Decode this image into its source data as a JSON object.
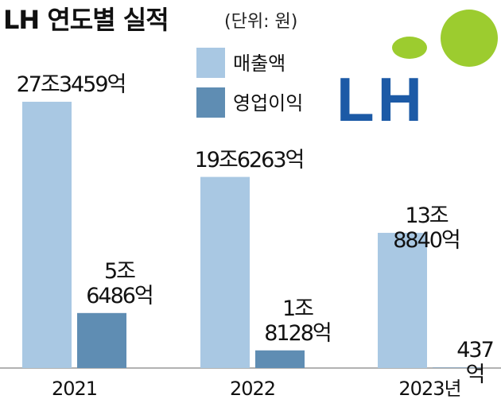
{
  "chart_data": {
    "type": "bar",
    "title": "LH 연도별 실적",
    "subtitle": "(단위: 원)",
    "logo_text": "LH",
    "categories": [
      "2021",
      "2022",
      "2023년"
    ],
    "series": [
      {
        "name": "매출액",
        "color": "#a9c8e3",
        "values": [
          273459,
          196263,
          138840
        ],
        "value_labels": [
          "27조3459억",
          "19조6263억",
          "13조8840억"
        ]
      },
      {
        "name": "영업이익",
        "color": "#5f8db3",
        "values": [
          56486,
          18128,
          437
        ],
        "value_labels": [
          "5조\n6486억",
          "1조\n8128억",
          "437억"
        ]
      }
    ],
    "ylim": [
      0,
      300000
    ]
  }
}
